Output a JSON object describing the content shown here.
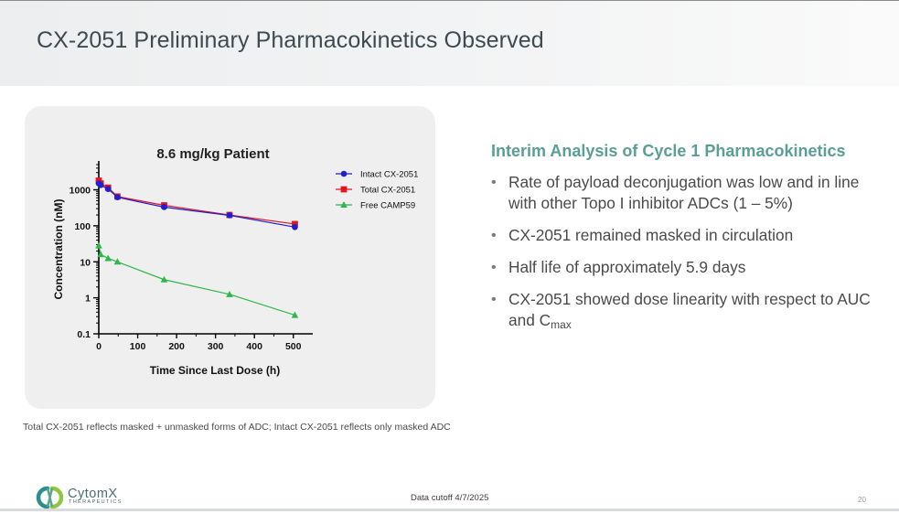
{
  "page": {
    "title": "CX-2051 Preliminary Pharmacokinetics Observed",
    "footnote": "Total CX-2051 reflects masked + unmasked forms of ADC; Intact CX-2051 reflects only masked ADC",
    "data_cutoff": "Data cutoff 4/7/2025",
    "page_number": "20"
  },
  "logo": {
    "name": "CytomX",
    "subtitle": "THERAPEUTICS",
    "icon": "cytomx-logo-icon",
    "colors": {
      "left_arc": "#2a8e8c",
      "right_arc": "#8dc63f",
      "text": "#4c6c78"
    }
  },
  "right_panel": {
    "heading": "Interim Analysis of Cycle 1 Pharmacokinetics",
    "bullets": [
      {
        "text": "Rate of payload deconjugation was low and in line with other Topo I inhibitor ADCs (1 – 5%)"
      },
      {
        "text": "CX-2051 remained masked in circulation"
      },
      {
        "text": "Half life of approximately 5.9 days"
      },
      {
        "text": "CX-2051 showed dose linearity with respect to AUC and C",
        "sub": "max"
      }
    ]
  },
  "chart_data": {
    "type": "line",
    "title": "8.6 mg/kg Patient",
    "xlabel": "Time Since Last Dose (h)",
    "ylabel": "Concentration (nM)",
    "y_scale": "log",
    "xlim": [
      0,
      550
    ],
    "ylim": [
      0.1,
      5000
    ],
    "x_ticks": [
      0,
      100,
      200,
      300,
      400,
      500
    ],
    "y_ticks": [
      {
        "value": 0.1,
        "label": "0.1"
      },
      {
        "value": 1,
        "label": "1"
      },
      {
        "value": 10,
        "label": "10"
      },
      {
        "value": 100,
        "label": "100"
      },
      {
        "value": 1000,
        "label": "1000"
      }
    ],
    "grid": false,
    "legend": "top-right",
    "series": [
      {
        "name": "Intact CX-2051",
        "color": "#1f1fd6",
        "marker": "circle",
        "points": [
          [
            0,
            1500
          ],
          [
            5,
            1350
          ],
          [
            24,
            1050
          ],
          [
            48,
            620
          ],
          [
            168,
            330
          ],
          [
            336,
            195
          ],
          [
            504,
            92
          ]
        ]
      },
      {
        "name": "Total CX-2051",
        "color": "#e0181e",
        "marker": "square",
        "points": [
          [
            0,
            1800
          ],
          [
            5,
            1500
          ],
          [
            24,
            1150
          ],
          [
            48,
            650
          ],
          [
            168,
            370
          ],
          [
            336,
            200
          ],
          [
            504,
            112
          ]
        ]
      },
      {
        "name": "Free CAMP59",
        "color": "#2fb84a",
        "marker": "triangle",
        "points": [
          [
            0,
            28
          ],
          [
            5,
            16
          ],
          [
            24,
            12.5
          ],
          [
            48,
            10
          ],
          [
            168,
            3.2
          ],
          [
            336,
            1.25
          ],
          [
            504,
            0.33
          ]
        ]
      }
    ]
  }
}
